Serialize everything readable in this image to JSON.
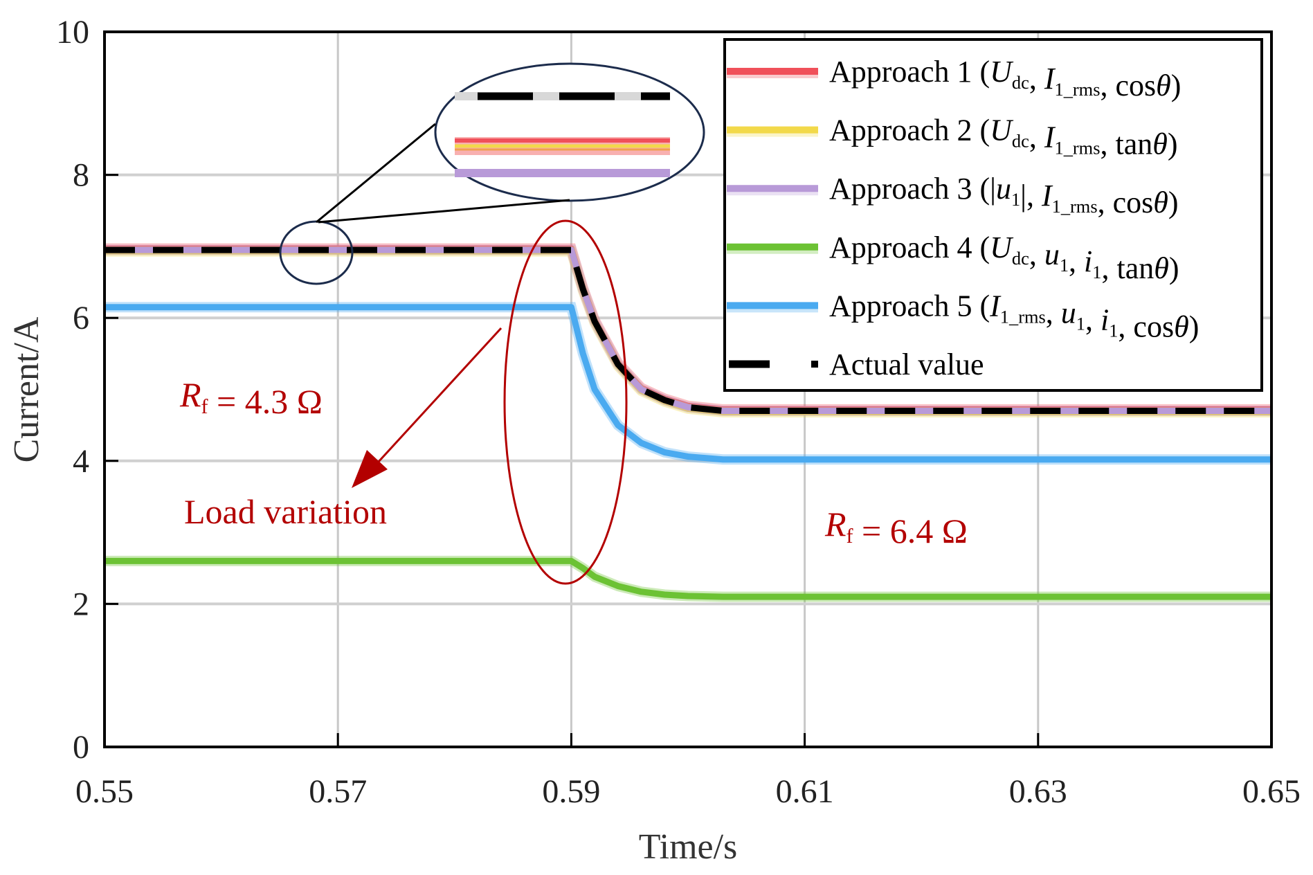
{
  "chart_data": {
    "type": "line",
    "xlabel": "Time/s",
    "ylabel": "Current/A",
    "xlim": [
      0.55,
      0.65
    ],
    "ylim": [
      0,
      10
    ],
    "xticks": [
      "0.55",
      "0.57",
      "0.59",
      "0.61",
      "0.63",
      "0.65"
    ],
    "yticks": [
      "0",
      "2",
      "4",
      "6",
      "8",
      "10"
    ],
    "grid": true,
    "legend_placement": "top-right",
    "x": [
      0.55,
      0.59,
      0.591,
      0.592,
      0.594,
      0.596,
      0.598,
      0.6,
      0.603,
      0.607,
      0.65
    ],
    "series": [
      {
        "name_parts": [
          {
            "t": "Approach 1 ("
          },
          {
            "t": "U",
            "i": 1
          },
          {
            "t": "dc",
            "s": 1
          },
          {
            "t": ", "
          },
          {
            "t": "I",
            "i": 1
          },
          {
            "t": "1_rms",
            "s": 1
          },
          {
            "t": ", cos"
          },
          {
            "t": "θ",
            "i": 1
          },
          {
            "t": ")"
          }
        ],
        "color": "#f0505a",
        "values": [
          6.97,
          6.97,
          6.42,
          5.97,
          5.37,
          5.02,
          4.87,
          4.77,
          4.72,
          4.72,
          4.72
        ]
      },
      {
        "name_parts": [
          {
            "t": "Approach 2 ("
          },
          {
            "t": "U",
            "i": 1
          },
          {
            "t": "dc",
            "s": 1
          },
          {
            "t": ", "
          },
          {
            "t": "I",
            "i": 1
          },
          {
            "t": "1_rms",
            "s": 1
          },
          {
            "t": ", tan"
          },
          {
            "t": "θ",
            "i": 1
          },
          {
            "t": ")"
          }
        ],
        "color": "#f2d94a",
        "values": [
          6.93,
          6.93,
          6.38,
          5.93,
          5.33,
          4.98,
          4.83,
          4.73,
          4.68,
          4.68,
          4.68
        ]
      },
      {
        "name_parts": [
          {
            "t": "Approach 3 (|"
          },
          {
            "t": "u",
            "i": 1
          },
          {
            "t": "1",
            "s": 1
          },
          {
            "t": "|, "
          },
          {
            "t": "I",
            "i": 1
          },
          {
            "t": "1_rms",
            "s": 1
          },
          {
            "t": ", cos"
          },
          {
            "t": "θ",
            "i": 1
          },
          {
            "t": ")"
          }
        ],
        "color": "#b89ad8",
        "values": [
          6.95,
          6.95,
          6.4,
          5.95,
          5.35,
          5.0,
          4.85,
          4.75,
          4.7,
          4.7,
          4.7
        ]
      },
      {
        "name_parts": [
          {
            "t": "Approach 4 ("
          },
          {
            "t": "U",
            "i": 1
          },
          {
            "t": "dc",
            "s": 1
          },
          {
            "t": ", "
          },
          {
            "t": "u",
            "i": 1
          },
          {
            "t": "1",
            "s": 1
          },
          {
            "t": ", "
          },
          {
            "t": "i",
            "i": 1
          },
          {
            "t": "1",
            "s": 1
          },
          {
            "t": ", tan"
          },
          {
            "t": "θ",
            "i": 1
          },
          {
            "t": ")"
          }
        ],
        "color": "#6cc234",
        "values": [
          2.6,
          2.6,
          2.5,
          2.38,
          2.25,
          2.17,
          2.13,
          2.11,
          2.1,
          2.1,
          2.1
        ]
      },
      {
        "name_parts": [
          {
            "t": "Approach 5 ("
          },
          {
            "t": "I",
            "i": 1
          },
          {
            "t": "1_rms",
            "s": 1
          },
          {
            "t": ", "
          },
          {
            "t": "u",
            "i": 1
          },
          {
            "t": "1",
            "s": 1
          },
          {
            "t": ", "
          },
          {
            "t": "i",
            "i": 1
          },
          {
            "t": "1",
            "s": 1
          },
          {
            "t": ", cos"
          },
          {
            "t": "θ",
            "i": 1
          },
          {
            "t": ")"
          }
        ],
        "color": "#4aaaf0",
        "values": [
          6.15,
          6.15,
          5.5,
          5.0,
          4.5,
          4.25,
          4.12,
          4.06,
          4.02,
          4.02,
          4.02
        ]
      },
      {
        "name_parts": [
          {
            "t": "Actual value"
          }
        ],
        "color": "#000000",
        "dashed": true,
        "values": [
          6.95,
          6.95,
          6.4,
          5.95,
          5.35,
          5.0,
          4.85,
          4.75,
          4.7,
          4.7,
          4.7
        ]
      }
    ],
    "annotations": {
      "before_load": [
        {
          "t": "R",
          "i": 1
        },
        {
          "t": "f",
          "s": 1
        },
        {
          "t": " = 4.3 Ω"
        }
      ],
      "load_variation": "Load variation",
      "after_load": [
        {
          "t": "R",
          "i": 1
        },
        {
          "t": "f",
          "s": 1
        },
        {
          "t": " = 6.4 Ω"
        }
      ],
      "color": "#b30000"
    }
  }
}
